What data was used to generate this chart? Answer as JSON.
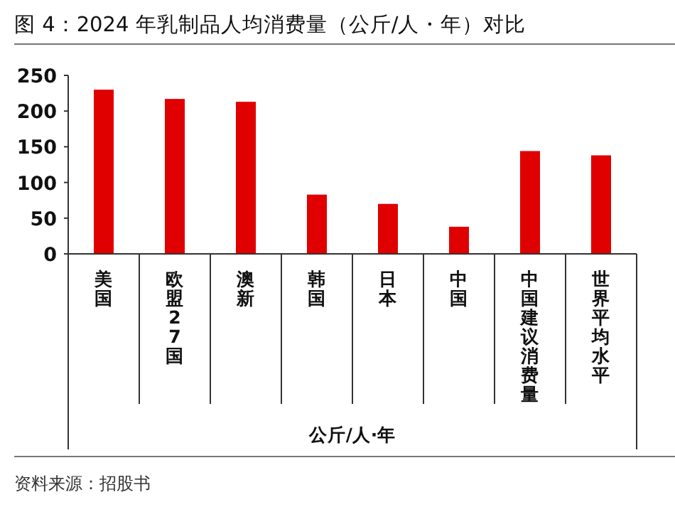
{
  "chart_data": {
    "type": "bar",
    "title": "图 4：2024 年乳制品人均消费量（公斤/人・年）对比",
    "categories": [
      "美国",
      "欧盟27国",
      "澳新",
      "韩国",
      "日本",
      "中国",
      "中国建议消费量",
      "世界平均水平"
    ],
    "values": [
      230,
      217,
      213,
      83,
      70,
      38,
      144,
      138
    ],
    "color": "#e00000",
    "ylim": [
      0,
      250
    ],
    "yticks": [
      0,
      50,
      100,
      150,
      200,
      250
    ],
    "grid": false,
    "annotations": [
      "公斤/人·年",
      "资料来源：招股书"
    ]
  }
}
